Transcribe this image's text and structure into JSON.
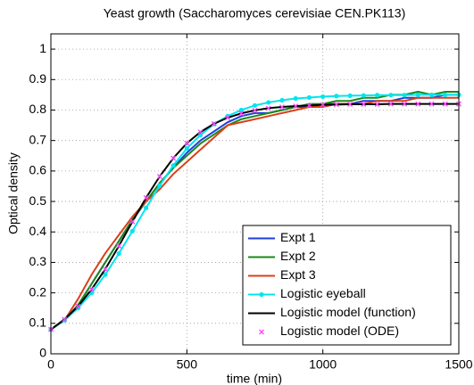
{
  "chart_data": {
    "type": "line",
    "title": "Yeast growth (Saccharomyces cerevisiae CEN.PK113)",
    "xlabel": "time (min)",
    "ylabel": "Optical density",
    "xlim": [
      0,
      1500
    ],
    "xticks": [
      0,
      500,
      1000,
      1500
    ],
    "ylim": [
      0,
      1.05
    ],
    "yticks": [
      0,
      0.1,
      0.2,
      0.3,
      0.4,
      0.5,
      0.6,
      0.7,
      0.8,
      0.9,
      1
    ],
    "grid": true,
    "legend": "lower right",
    "x": [
      0,
      50,
      100,
      150,
      200,
      250,
      300,
      350,
      400,
      450,
      500,
      550,
      600,
      650,
      700,
      750,
      800,
      850,
      900,
      950,
      1000,
      1050,
      1100,
      1150,
      1200,
      1250,
      1300,
      1350,
      1400,
      1450,
      1500
    ],
    "series": [
      {
        "name": "Expt 1",
        "color": "#1f3fdc",
        "line": true,
        "marker": "none",
        "values": [
          0.08,
          0.11,
          0.16,
          0.23,
          0.3,
          0.37,
          0.44,
          0.5,
          0.56,
          0.61,
          0.66,
          0.7,
          0.73,
          0.76,
          0.78,
          0.79,
          0.79,
          0.8,
          0.81,
          0.81,
          0.82,
          0.82,
          0.82,
          0.83,
          0.83,
          0.83,
          0.84,
          0.84,
          0.84,
          0.85,
          0.85
        ]
      },
      {
        "name": "Expt 2",
        "color": "#1a8a1a",
        "line": true,
        "marker": "none",
        "values": [
          0.08,
          0.11,
          0.16,
          0.23,
          0.3,
          0.37,
          0.44,
          0.5,
          0.56,
          0.61,
          0.65,
          0.69,
          0.72,
          0.75,
          0.77,
          0.78,
          0.79,
          0.8,
          0.81,
          0.82,
          0.82,
          0.83,
          0.83,
          0.84,
          0.84,
          0.85,
          0.85,
          0.86,
          0.85,
          0.86,
          0.86
        ]
      },
      {
        "name": "Expt 3",
        "color": "#d9401a",
        "line": true,
        "marker": "none",
        "values": [
          0.08,
          0.11,
          0.18,
          0.26,
          0.33,
          0.39,
          0.45,
          0.5,
          0.54,
          0.59,
          0.63,
          0.67,
          0.71,
          0.75,
          0.76,
          0.77,
          0.78,
          0.79,
          0.8,
          0.81,
          0.81,
          0.82,
          0.82,
          0.82,
          0.83,
          0.83,
          0.83,
          0.84,
          0.84,
          0.84,
          0.84
        ]
      },
      {
        "name": "Logistic eyeball",
        "color": "#00e5ee",
        "line": true,
        "marker": "dot",
        "values": [
          0.08,
          0.11,
          0.15,
          0.2,
          0.26,
          0.329,
          0.403,
          0.479,
          0.552,
          0.618,
          0.674,
          0.718,
          0.754,
          0.78,
          0.8,
          0.815,
          0.825,
          0.832,
          0.838,
          0.841,
          0.844,
          0.846,
          0.847,
          0.848,
          0.849,
          0.849,
          0.849,
          0.85,
          0.85,
          0.85,
          0.85
        ]
      },
      {
        "name": "Logistic model (function)",
        "color": "#000000",
        "line": true,
        "marker": "none",
        "values": [
          0.08,
          0.113,
          0.156,
          0.212,
          0.278,
          0.354,
          0.434,
          0.512,
          0.582,
          0.642,
          0.691,
          0.728,
          0.755,
          0.775,
          0.789,
          0.799,
          0.806,
          0.81,
          0.813,
          0.815,
          0.817,
          0.818,
          0.819,
          0.819,
          0.819,
          0.82,
          0.82,
          0.82,
          0.82,
          0.82,
          0.82
        ]
      },
      {
        "name": "Logistic model (ODE)",
        "color": "#ff44ff",
        "line": false,
        "marker": "x",
        "values": [
          0.08,
          0.113,
          0.156,
          0.212,
          0.278,
          0.354,
          0.434,
          0.512,
          0.582,
          0.642,
          0.691,
          0.728,
          0.755,
          0.775,
          0.789,
          0.799,
          0.806,
          0.81,
          0.813,
          0.815,
          0.817,
          0.818,
          0.819,
          0.819,
          0.819,
          0.82,
          0.82,
          0.82,
          0.82,
          0.82,
          0.82
        ]
      }
    ]
  }
}
